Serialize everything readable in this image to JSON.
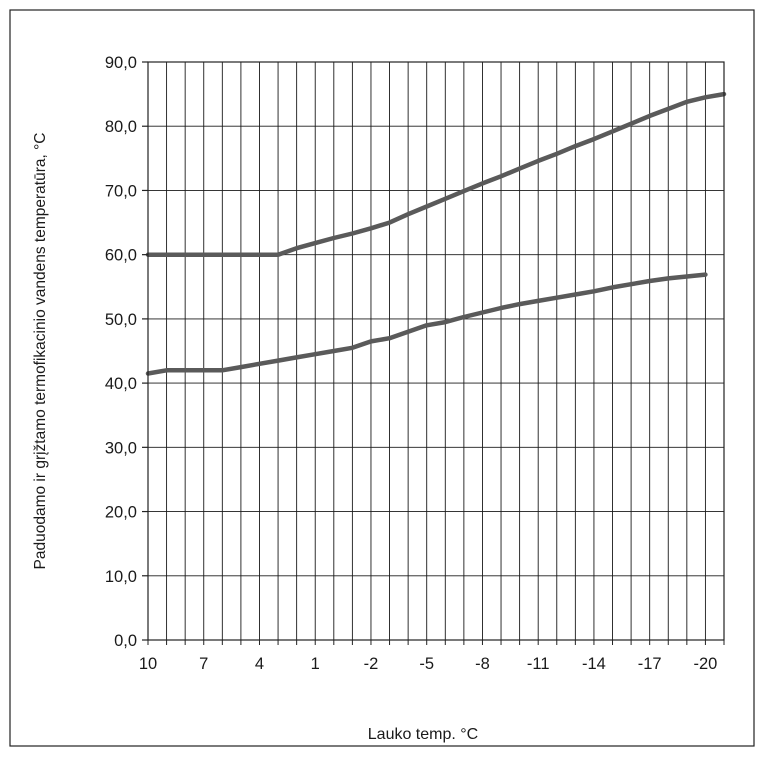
{
  "chart_data": {
    "type": "line",
    "title": "",
    "xlabel": "Lauko temp. °C",
    "ylabel": "Paduodamo ir grįžtamo termofikacinio  vandens temperatūra, °C",
    "x_direction": "descending",
    "xlim": [
      10,
      -21
    ],
    "ylim": [
      0,
      90
    ],
    "x_ticks": [
      "10",
      "7",
      "4",
      "1",
      "-2",
      "-5",
      "-8",
      "-11",
      "-14",
      "-17",
      "-20"
    ],
    "y_ticks": [
      "0,0",
      "10,0",
      "20,0",
      "30,0",
      "40,0",
      "50,0",
      "60,0",
      "70,0",
      "80,0",
      "90,0"
    ],
    "grid": true,
    "legend": "none",
    "series": [
      {
        "x": [
          10,
          9,
          8,
          7,
          6,
          5,
          4,
          3,
          2,
          1,
          0,
          -1,
          -2,
          -3,
          -4,
          -5,
          -6,
          -7,
          -8,
          -9,
          -10,
          -11,
          -12,
          -13,
          -14,
          -15,
          -16,
          -17,
          -18,
          -19,
          -20,
          -21
        ],
        "values": [
          60.0,
          60.0,
          60.0,
          60.0,
          60.0,
          60.0,
          60.0,
          60.0,
          61.0,
          61.8,
          62.6,
          63.3,
          64.1,
          65.0,
          66.3,
          67.5,
          68.7,
          69.9,
          71.1,
          72.2,
          73.4,
          74.6,
          75.7,
          76.9,
          78.0,
          79.2,
          80.4,
          81.6,
          82.7,
          83.8,
          84.5,
          85.0
        ]
      },
      {
        "x": [
          10,
          9,
          8,
          7,
          6,
          5,
          4,
          3,
          2,
          1,
          0,
          -1,
          -2,
          -3,
          -4,
          -5,
          -6,
          -7,
          -8,
          -9,
          -10,
          -11,
          -12,
          -13,
          -14,
          -15,
          -16,
          -17,
          -18,
          -19,
          -20
        ],
        "values": [
          41.5,
          42.0,
          42.0,
          42.0,
          42.0,
          42.5,
          43.0,
          43.5,
          44.0,
          44.5,
          45.0,
          45.5,
          46.5,
          47.0,
          48.0,
          49.0,
          49.5,
          50.3,
          51.0,
          51.7,
          52.3,
          52.8,
          53.3,
          53.8,
          54.3,
          54.9,
          55.4,
          55.9,
          56.3,
          56.6,
          56.9
        ]
      }
    ],
    "line_color": "#5a5a5a",
    "grid_color": "#1a1a1a",
    "frame_color": "#222222"
  }
}
